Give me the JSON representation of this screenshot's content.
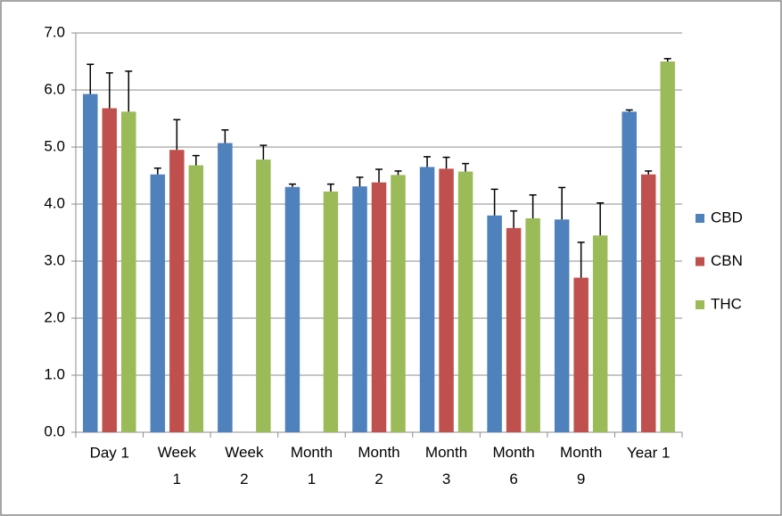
{
  "chart_data": {
    "type": "bar",
    "categories": [
      "Day 1",
      "Week 1",
      "Week 2",
      "Month 1",
      "Month 2",
      "Month 3",
      "Month 6",
      "Month 9",
      "Year 1"
    ],
    "series": [
      {
        "name": "CBD",
        "color": "#4f81bd",
        "values": [
          5.93,
          4.52,
          5.07,
          4.3,
          4.31,
          4.65,
          3.8,
          3.73,
          5.62
        ],
        "errors": [
          0.52,
          0.11,
          0.23,
          0.05,
          0.16,
          0.18,
          0.46,
          0.56,
          0.03
        ]
      },
      {
        "name": "CBN",
        "color": "#c0504d",
        "values": [
          5.68,
          4.95,
          null,
          null,
          4.38,
          4.62,
          3.58,
          2.71,
          4.52
        ],
        "errors": [
          0.62,
          0.53,
          null,
          null,
          0.23,
          0.2,
          0.3,
          0.62,
          0.06
        ]
      },
      {
        "name": "THC",
        "color": "#9bbb59",
        "values": [
          5.62,
          4.68,
          4.78,
          4.22,
          4.51,
          4.57,
          3.75,
          3.45,
          6.5
        ],
        "errors": [
          0.71,
          0.17,
          0.25,
          0.13,
          0.07,
          0.14,
          0.41,
          0.57,
          0.05
        ]
      }
    ],
    "ylim": [
      0,
      7
    ],
    "yticks": [
      {
        "value": 0,
        "label": "0.0"
      },
      {
        "value": 1,
        "label": "1.0"
      },
      {
        "value": 2,
        "label": "2.0"
      },
      {
        "value": 3,
        "label": "3.0"
      },
      {
        "value": 4,
        "label": "4.0"
      },
      {
        "value": 5,
        "label": "5.0"
      },
      {
        "value": 6,
        "label": "6.0"
      },
      {
        "value": 7,
        "label": "7.0"
      }
    ],
    "grid": true,
    "legend": "right"
  }
}
